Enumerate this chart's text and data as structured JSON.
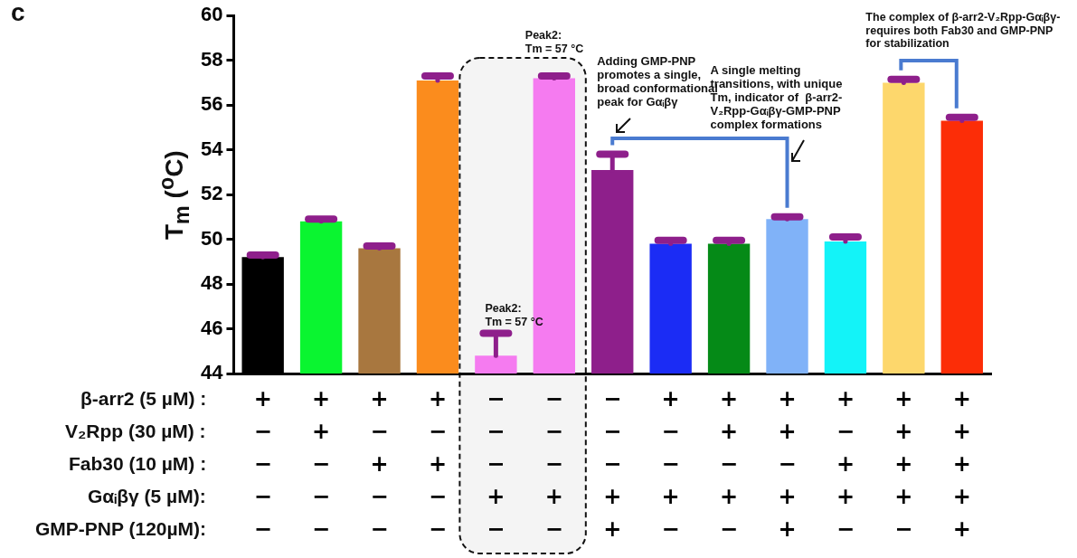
{
  "chart_data": {
    "type": "bar",
    "title": "c",
    "ylabel": "T$_{m}$ ($^{o}$C)",
    "categories": [
      "+\n−\n−\n−\n−",
      "+\n+\n−\n−\n−",
      "+\n−\n+\n−\n−",
      "+\n−\n+\n−\n−",
      "−\n−\n−\n+\n−",
      "−\n−\n−\n+\n−",
      "−\n−\n−\n+\n+",
      "+\n−\n−\n+\n−",
      "+\n+\n−\n+\n−",
      "+\n+\n−\n+\n+",
      "+\n−\n+\n+\n−",
      "+\n+\n+\n+\n−",
      "+\n+\n+\n+\n+"
    ],
    "values": [
      49.2,
      50.8,
      49.6,
      57.1,
      44.8,
      57.2,
      53.1,
      49.8,
      49.8,
      50.9,
      49.9,
      57.0,
      55.3
    ],
    "errors": [
      0.1,
      0.1,
      0.1,
      0.2,
      1.0,
      0.1,
      0.7,
      0.15,
      0.15,
      0.1,
      0.2,
      0.15,
      0.15
    ],
    "colors": [
      "#000000",
      "#0af530",
      "#a8773f",
      "#fb8c1d",
      "#f57bf0",
      "#f57bf0",
      "#8e1f8b",
      "#1b2cf5",
      "#058a17",
      "#80b2f8",
      "#13f3f8",
      "#fdd76c",
      "#fc2d07"
    ],
    "ylim": [
      44,
      60
    ],
    "yticks": [
      44,
      46,
      48,
      50,
      52,
      54,
      56,
      58,
      60
    ],
    "annotations": [
      "Peak2:\nTm = 57 °C",
      "Peak2:\nTm = 57 °C",
      "Adding GMP-PNP\npromotes a single,\nbroad conformational\npeak for Gαᵢβγ",
      "A single melting\ntransitions, with unique\nTm, indicator of  β-arr2-\nV₂Rpp-Gαᵢβγ-GMP-PNP\ncomplex formations",
      "The complex of β-arr2-V₂Rpp-Gαᵢβγ-\nrequires both Fab30 and GMP-PNP\nfor stabilization",
      "β-arr2 (5 µM) :",
      "V₂Rpp (30 µM) :",
      "Fab30 (10 µM) :",
      "Gαᵢβγ (5 µM):",
      "GMP-PNP (120µM):"
    ]
  }
}
